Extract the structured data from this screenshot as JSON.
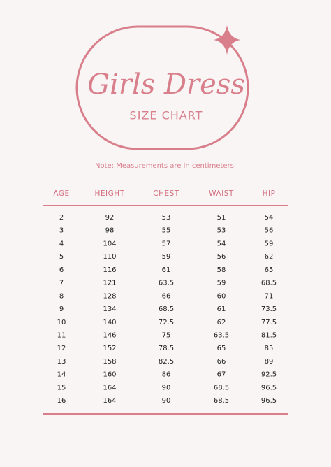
{
  "header": {
    "title": "Girls Dress",
    "subtitle": "SIZE CHART",
    "note": "Note: Measurements are in centimeters."
  },
  "table": {
    "headers": [
      "AGE",
      "HEIGHT",
      "CHEST",
      "WAIST",
      "HIP"
    ],
    "rows": [
      [
        2,
        92,
        53,
        51,
        54
      ],
      [
        3,
        98,
        55,
        53,
        56
      ],
      [
        4,
        104,
        57,
        54,
        59
      ],
      [
        5,
        110,
        59,
        56,
        62
      ],
      [
        6,
        116,
        61,
        58,
        65
      ],
      [
        7,
        121,
        63.5,
        59,
        68.5
      ],
      [
        8,
        128,
        66,
        60,
        71
      ],
      [
        9,
        134,
        68.5,
        61,
        73.5
      ],
      [
        10,
        140,
        72.5,
        62,
        77.5
      ],
      [
        11,
        146,
        75,
        63.5,
        81.5
      ],
      [
        12,
        152,
        78.5,
        65,
        85
      ],
      [
        13,
        158,
        82.5,
        66,
        89
      ],
      [
        14,
        160,
        86,
        67,
        92.5
      ],
      [
        15,
        164,
        90,
        68.5,
        96.5
      ],
      [
        16,
        164,
        90,
        68.5,
        96.5
      ]
    ]
  }
}
